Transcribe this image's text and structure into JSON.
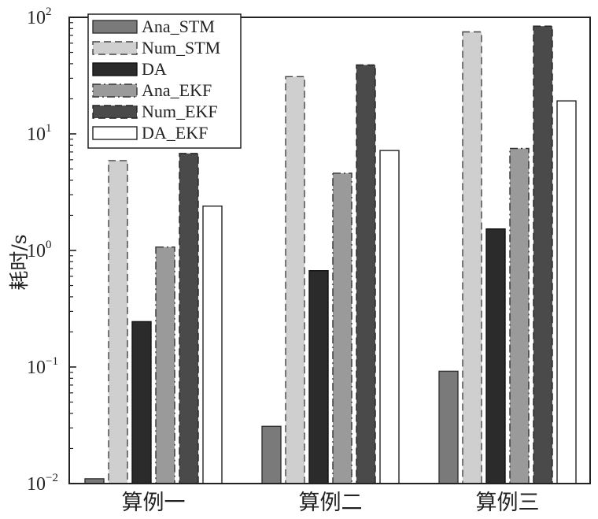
{
  "chart_data": {
    "type": "bar",
    "title": "",
    "xlabel": "",
    "ylabel": "耗时/s",
    "yscale": "log",
    "ylim": [
      0.01,
      100
    ],
    "yticks": [
      {
        "base": "10",
        "exp": "−2",
        "value": 0.01
      },
      {
        "base": "10",
        "exp": "−1",
        "value": 0.1
      },
      {
        "base": "10",
        "exp": "0",
        "value": 1
      },
      {
        "base": "10",
        "exp": "1",
        "value": 10
      },
      {
        "base": "10",
        "exp": "2",
        "value": 100
      }
    ],
    "categories": [
      "算例一",
      "算例二",
      "算例三"
    ],
    "series": [
      {
        "name": "Ana_STM",
        "values": [
          0.011,
          0.031,
          0.092
        ],
        "fill": "#7a7a7a",
        "stroke": "#333333",
        "dash": "none"
      },
      {
        "name": "Num_STM",
        "values": [
          5.9,
          31,
          75
        ],
        "fill": "#cfcfcf",
        "stroke": "#444444",
        "dash": "dashed"
      },
      {
        "name": "DA",
        "values": [
          0.245,
          0.67,
          1.53
        ],
        "fill": "#2b2b2b",
        "stroke": "#111111",
        "dash": "none"
      },
      {
        "name": "Ana_EKF",
        "values": [
          1.07,
          4.6,
          7.5
        ],
        "fill": "#9a9a9a",
        "stroke": "#333333",
        "dash": "dashdot"
      },
      {
        "name": "Num_EKF",
        "values": [
          6.8,
          39,
          84
        ],
        "fill": "#4a4a4a",
        "stroke": "#222222",
        "dash": "dashed"
      },
      {
        "name": "DA_EKF",
        "values": [
          2.4,
          7.2,
          19.2
        ],
        "fill": "#ffffff",
        "stroke": "#222222",
        "dash": "none"
      }
    ],
    "legend_position": "top-left",
    "grid": false
  }
}
